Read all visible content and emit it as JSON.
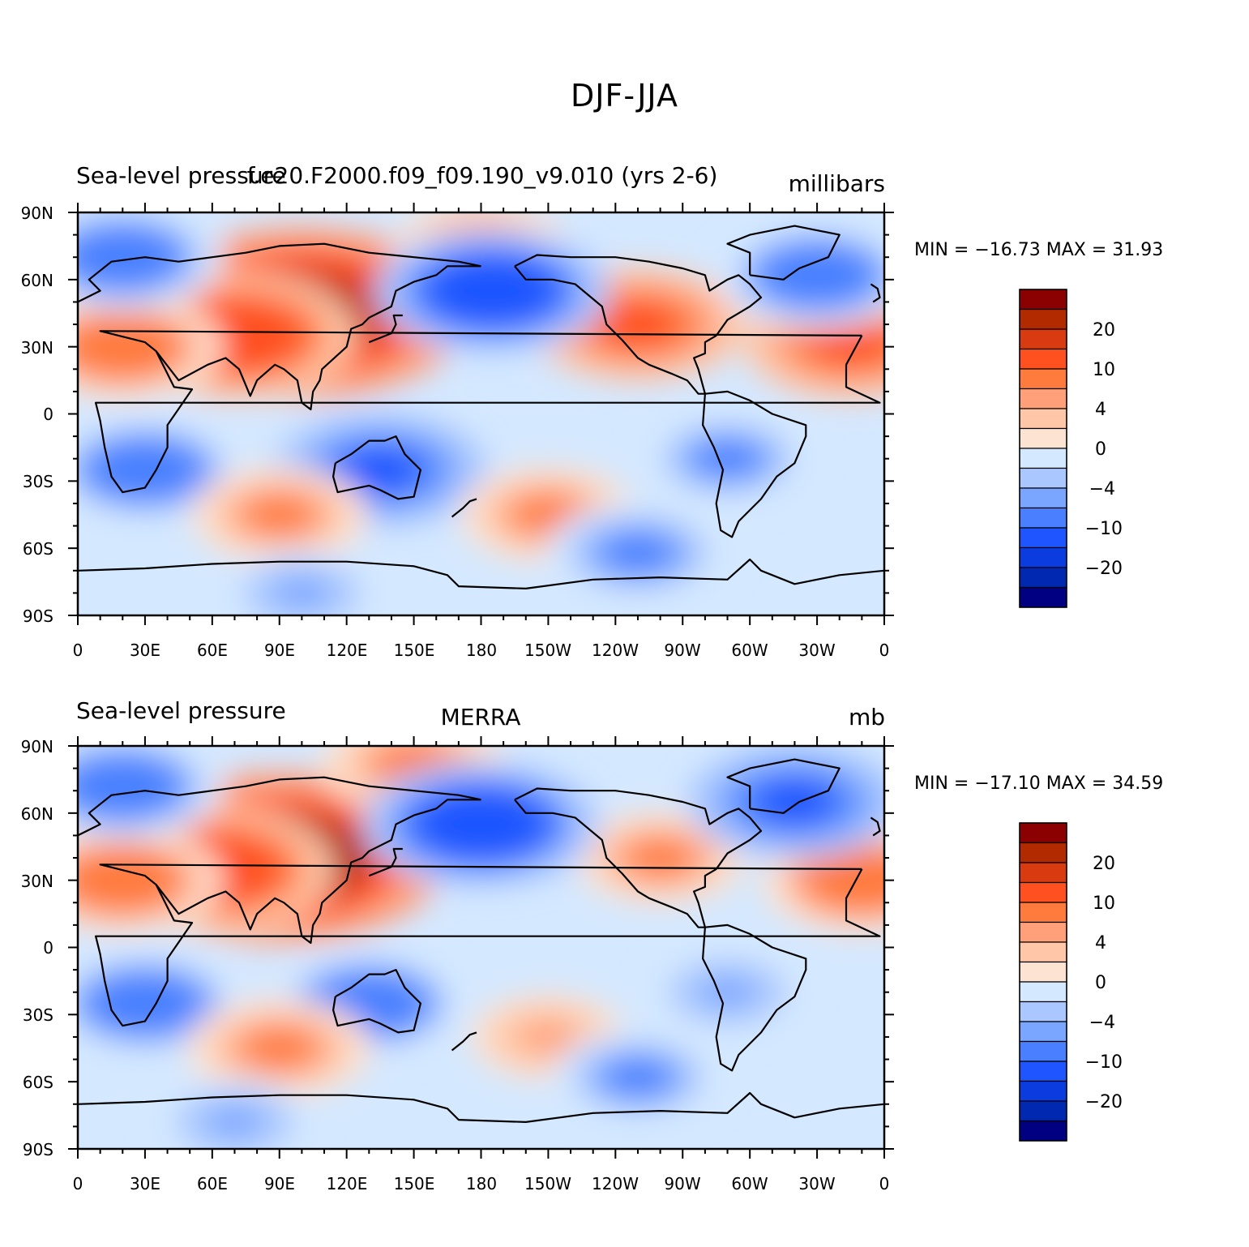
{
  "title": "DJF-JJA",
  "panels": [
    {
      "id": "top",
      "left_title": "Sea-level pressure",
      "center_title": "f.e20.F2000.f09_f09.190_v9.010 (yrs 2-6)",
      "right_title": "millibars",
      "min_max": "MIN = −16.73  MAX =   31.93"
    },
    {
      "id": "bottom",
      "left_title": "Sea-level pressure",
      "center_title": "MERRA",
      "right_title": "mb",
      "min_max": "MIN = −17.10  MAX =   34.59"
    }
  ],
  "y_ticks": [
    "90N",
    "60N",
    "30N",
    "0",
    "30S",
    "60S",
    "90S"
  ],
  "x_ticks": [
    "0",
    "30E",
    "60E",
    "90E",
    "120E",
    "150E",
    "180",
    "150W",
    "120W",
    "90W",
    "60W",
    "30W",
    "0"
  ],
  "colorbar": {
    "labels": [
      "20",
      "10",
      "4",
      "0",
      "−4",
      "−10",
      "−20"
    ],
    "colors": [
      "#8b0000",
      "#b22a00",
      "#d83b10",
      "#ff5020",
      "#ff7a3d",
      "#ffa07a",
      "#ffc7a8",
      "#fde3d1",
      "#d4e8ff",
      "#aac8ff",
      "#7aa6ff",
      "#4a80ff",
      "#1f55ff",
      "#0a3ce0",
      "#0028b0",
      "#000080"
    ]
  },
  "fields": [
    {
      "panel": "top",
      "blobs": [
        {
          "lon": 100,
          "lat": 45,
          "value": 31.9
        },
        {
          "lon": 70,
          "lat": 35,
          "value": 18
        },
        {
          "lon": 20,
          "lat": 30,
          "value": 12
        },
        {
          "lon": 345,
          "lat": 32,
          "value": 14
        },
        {
          "lon": 250,
          "lat": 40,
          "value": 14
        },
        {
          "lon": 180,
          "lat": 75,
          "value": 8
        },
        {
          "lon": 185,
          "lat": 55,
          "value": -16.7
        },
        {
          "lon": 330,
          "lat": 62,
          "value": -12
        },
        {
          "lon": 20,
          "lat": 70,
          "value": -12
        },
        {
          "lon": 30,
          "lat": -25,
          "value": -12
        },
        {
          "lon": 135,
          "lat": -25,
          "value": -14
        },
        {
          "lon": 290,
          "lat": -20,
          "value": -8
        },
        {
          "lon": 90,
          "lat": -45,
          "value": 9
        },
        {
          "lon": 210,
          "lat": -45,
          "value": 9
        },
        {
          "lon": 250,
          "lat": -62,
          "value": -10
        },
        {
          "lon": 100,
          "lat": -80,
          "value": -6
        }
      ]
    },
    {
      "panel": "bottom",
      "blobs": [
        {
          "lon": 90,
          "lat": 40,
          "value": 34.6
        },
        {
          "lon": 60,
          "lat": 35,
          "value": 18
        },
        {
          "lon": 20,
          "lat": 30,
          "value": 12
        },
        {
          "lon": 350,
          "lat": 30,
          "value": 12
        },
        {
          "lon": 260,
          "lat": 40,
          "value": 8
        },
        {
          "lon": 150,
          "lat": 82,
          "value": 10
        },
        {
          "lon": 180,
          "lat": 55,
          "value": -17.1
        },
        {
          "lon": 320,
          "lat": 65,
          "value": -14
        },
        {
          "lon": 20,
          "lat": 72,
          "value": -12
        },
        {
          "lon": 30,
          "lat": -25,
          "value": -12
        },
        {
          "lon": 130,
          "lat": -25,
          "value": -12
        },
        {
          "lon": 290,
          "lat": -20,
          "value": -6
        },
        {
          "lon": 90,
          "lat": -45,
          "value": 10
        },
        {
          "lon": 210,
          "lat": -40,
          "value": 6
        },
        {
          "lon": 250,
          "lat": -58,
          "value": -8
        },
        {
          "lon": 70,
          "lat": -78,
          "value": -6
        }
      ]
    }
  ]
}
